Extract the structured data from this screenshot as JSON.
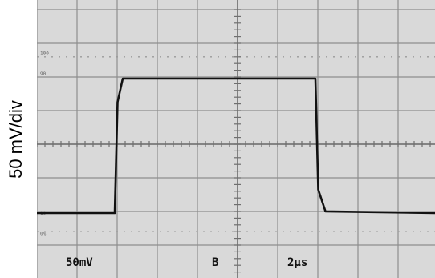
{
  "chart_data": {
    "type": "line",
    "title": "",
    "ylabel": "50 mV/div",
    "xlabel": "",
    "grid": true,
    "x_divisions": 10,
    "y_divisions": 8,
    "x_unit_per_div": "2 µs",
    "y_unit_per_div": "50 mV",
    "graticule_labels": [
      "100",
      "90",
      "10",
      "0%"
    ],
    "series": [
      {
        "x": [
          0,
          2.0,
          2.07,
          2.2,
          7.0,
          7.07,
          7.25,
          10.0
        ],
        "y": [
          0,
          0,
          3.3,
          4.0,
          4.0,
          0.7,
          0.05,
          0
        ],
        "color": "#111111"
      }
    ],
    "readouts": {
      "ch1": "50mV",
      "trigger": "B",
      "timebase": "2µs"
    }
  }
}
